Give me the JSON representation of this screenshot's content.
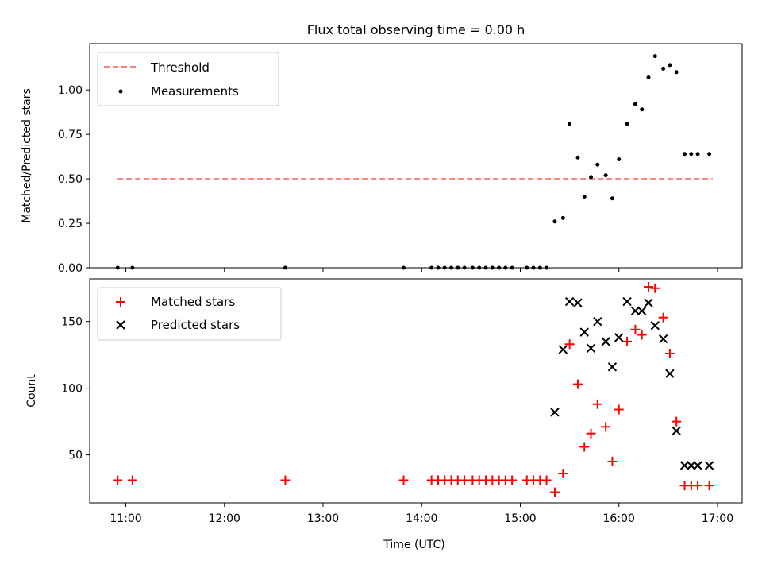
{
  "title": "Flux total observing time = 0.00 h",
  "colors": {
    "threshold": "#ff7f7f",
    "measurements": "#000000",
    "matched": "#ff0000",
    "predicted": "#000000"
  },
  "chart_data": [
    {
      "type": "scatter",
      "panel": "top",
      "ylabel": "Matched/Predicted stars",
      "ylim": [
        0,
        1.26
      ],
      "yticks": [
        0.0,
        0.25,
        0.5,
        0.75,
        1.0
      ],
      "ytick_labels": [
        "0.00",
        "0.25",
        "0.50",
        "0.75",
        "1.00"
      ],
      "legend": {
        "placement": "top-left",
        "entries": [
          "Threshold",
          "Measurements"
        ]
      },
      "threshold": {
        "name": "Threshold",
        "value": 0.5,
        "x_range": [
          "10:55",
          "16:57"
        ],
        "style": "dashed"
      },
      "measurements": {
        "name": "Measurements",
        "x": [
          "10:55",
          "11:04",
          "12:37",
          "13:49",
          "14:06",
          "14:10",
          "14:14",
          "14:18",
          "14:22",
          "14:26",
          "14:31",
          "14:35",
          "14:39",
          "14:43",
          "14:47",
          "14:51",
          "14:55",
          "15:04",
          "15:08",
          "15:12",
          "15:16",
          "15:21",
          "15:26",
          "15:30",
          "15:35",
          "15:39",
          "15:43",
          "15:47",
          "15:52",
          "15:56",
          "16:00",
          "16:05",
          "16:10",
          "16:14",
          "16:18",
          "16:22",
          "16:27",
          "16:31",
          "16:35",
          "16:40",
          "16:44",
          "16:48",
          "16:55"
        ],
        "y": [
          0.0,
          0.0,
          0.0,
          0.0,
          0.0,
          0.0,
          0.0,
          0.0,
          0.0,
          0.0,
          0.0,
          0.0,
          0.0,
          0.0,
          0.0,
          0.0,
          0.0,
          0.0,
          0.0,
          0.0,
          0.0,
          0.26,
          0.28,
          0.81,
          0.62,
          0.4,
          0.51,
          0.58,
          0.52,
          0.39,
          0.61,
          0.81,
          0.92,
          0.89,
          1.07,
          1.19,
          1.12,
          1.14,
          1.1,
          0.64,
          0.64,
          0.64,
          0.64
        ]
      }
    },
    {
      "type": "scatter",
      "panel": "bottom",
      "xlabel": "Time (UTC)",
      "ylabel": "Count",
      "ylim": [
        14,
        182
      ],
      "xlim": [
        "10:38",
        "17:15"
      ],
      "xticks": [
        "11:00",
        "12:00",
        "13:00",
        "14:00",
        "15:00",
        "16:00",
        "17:00"
      ],
      "yticks": [
        50,
        100,
        150
      ],
      "legend": {
        "placement": "top-left",
        "entries": [
          "Matched stars",
          "Predicted stars"
        ]
      },
      "series": [
        {
          "name": "Matched stars",
          "marker": "plus",
          "x": [
            "10:55",
            "11:04",
            "12:37",
            "13:49",
            "14:06",
            "14:10",
            "14:14",
            "14:18",
            "14:22",
            "14:26",
            "14:31",
            "14:35",
            "14:39",
            "14:43",
            "14:47",
            "14:51",
            "14:55",
            "15:04",
            "15:08",
            "15:12",
            "15:16",
            "15:21",
            "15:26",
            "15:30",
            "15:35",
            "15:39",
            "15:43",
            "15:47",
            "15:52",
            "15:56",
            "16:00",
            "16:05",
            "16:10",
            "16:14",
            "16:18",
            "16:22",
            "16:27",
            "16:31",
            "16:35",
            "16:40",
            "16:44",
            "16:48",
            "16:55"
          ],
          "y": [
            31,
            31,
            31,
            31,
            31,
            31,
            31,
            31,
            31,
            31,
            31,
            31,
            31,
            31,
            31,
            31,
            31,
            31,
            31,
            31,
            31,
            22,
            36,
            133,
            103,
            56,
            66,
            88,
            71,
            45,
            84,
            135,
            144,
            140,
            176,
            175,
            153,
            126,
            75,
            27,
            27,
            27,
            27
          ]
        },
        {
          "name": "Predicted stars",
          "marker": "x",
          "x": [
            "15:21",
            "15:26",
            "15:30",
            "15:35",
            "15:39",
            "15:43",
            "15:47",
            "15:52",
            "15:56",
            "16:00",
            "16:05",
            "16:10",
            "16:14",
            "16:18",
            "16:22",
            "16:27",
            "16:31",
            "16:35",
            "16:40",
            "16:44",
            "16:48",
            "16:55"
          ],
          "y": [
            82,
            129,
            165,
            164,
            142,
            130,
            150,
            135,
            116,
            138,
            165,
            158,
            158,
            164,
            147,
            137,
            111,
            68,
            42,
            42,
            42,
            42
          ]
        }
      ]
    }
  ]
}
